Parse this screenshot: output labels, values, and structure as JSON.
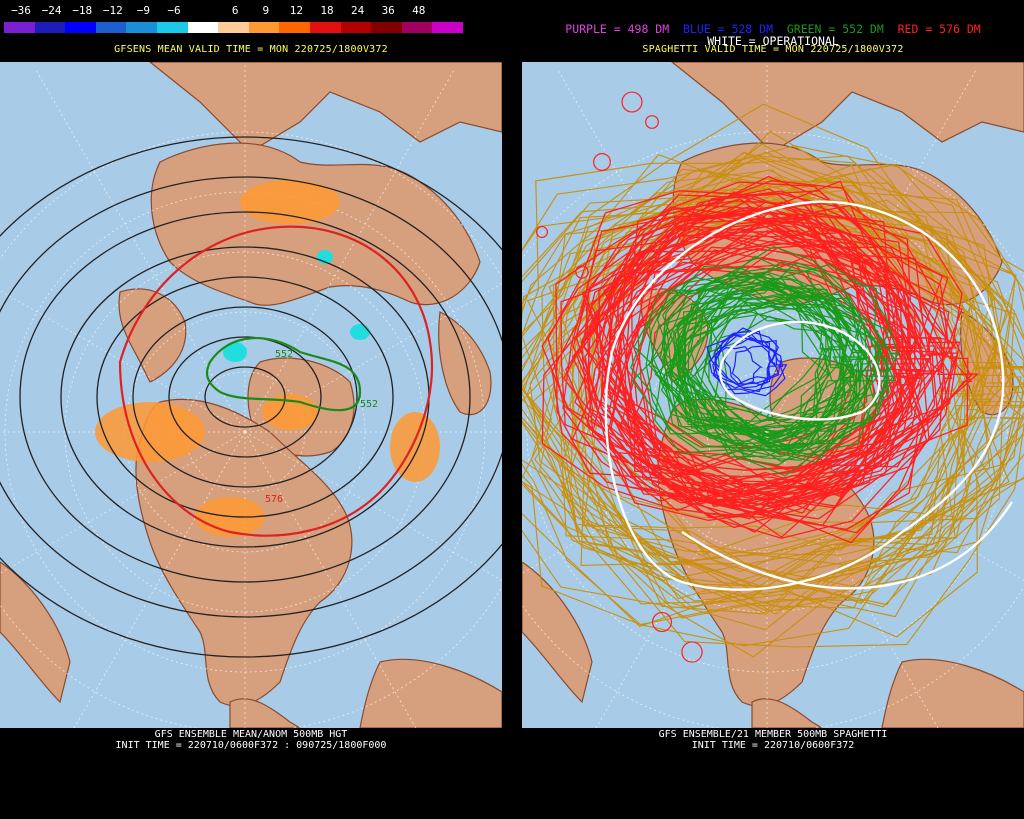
{
  "left_panel": {
    "colorbar_ticks": [
      "−36",
      "−24",
      "−18",
      "−12",
      "−9",
      "−6",
      "6",
      "9",
      "12",
      "18",
      "24",
      "36",
      "48"
    ],
    "colorbar_colors": [
      "#7a1fd0",
      "#1d1db8",
      "#0000ff",
      "#1e5fd0",
      "#1a8fd8",
      "#1ec8e8",
      "#ffffff",
      "#ffcc99",
      "#ff9933",
      "#ff6600",
      "#e01010",
      "#b00000",
      "#800000",
      "#a00060",
      "#c800c8"
    ],
    "header": "GFSENS MEAN VALID TIME = MON 220725/1800V372",
    "contour_labels": [
      "552",
      "552",
      "576"
    ],
    "footer_line1": "GFS ENSEMBLE MEAN/ANOM 500MB HGT",
    "footer_line2": "INIT TIME = 220710/0600F372 : 090725/1800F000"
  },
  "right_panel": {
    "legend_items": [
      {
        "text": "PURPLE = 498 DM",
        "color": "#e040e0"
      },
      {
        "text": "BLUE = 528 DM",
        "color": "#2020ff"
      },
      {
        "text": "GREEN = 552 DM",
        "color": "#1a9a1a"
      },
      {
        "text": "RED = 576 DM",
        "color": "#ff2020"
      }
    ],
    "legend_line2": "WHITE = OPERATIONAL",
    "header": "SPAGHETTI VALID TIME = MON 220725/1800V372",
    "footer_line1": "GFS ENSEMBLE/21 MEMBER 500MB SPAGHETTI",
    "footer_line2": "INIT TIME = 220710/0600F372"
  },
  "colors": {
    "ocean": "#a8cbe8",
    "land": "#d6a07e",
    "border": "#8b4a2b",
    "mean_contour": "#222222",
    "contour_576": "#dd2222",
    "contour_552": "#1a8a1a",
    "anom_positive": "#ff9933",
    "anom_negative": "#22dddd",
    "spaghetti_498": "#e040e0",
    "spaghetti_528": "#2020ff",
    "spaghetti_552": "#1a9a1a",
    "spaghetti_576": "#ff2020",
    "spaghetti_outer": "#c8900e",
    "operational": "#ffffff"
  }
}
